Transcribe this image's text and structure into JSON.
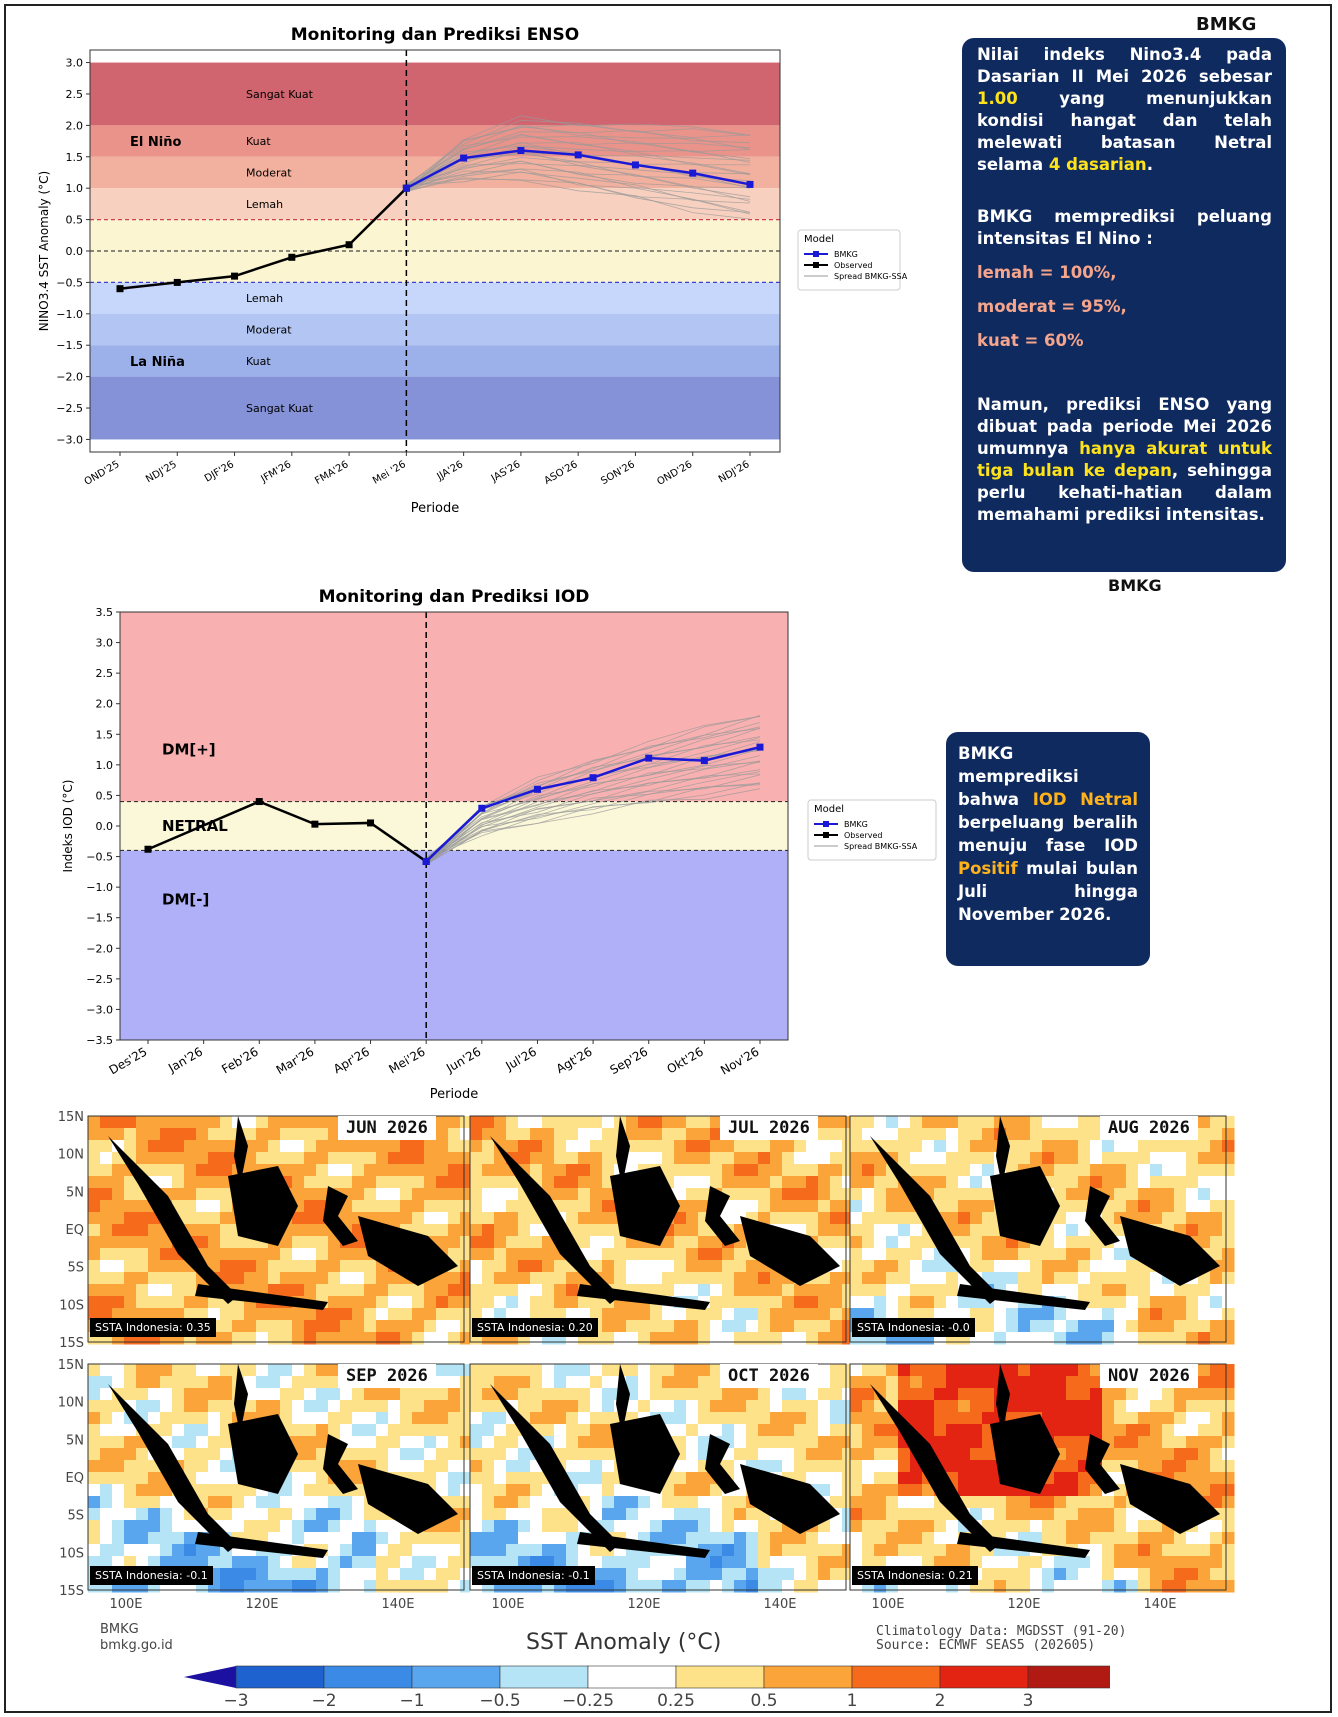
{
  "brand": {
    "top": "BMKG",
    "mid": "BMKG"
  },
  "enso_panel": {
    "p1a": "Nilai indeks Nino3.4 pada Dasarian II Mei 2026 sebesar ",
    "p1b": "1.00",
    "p1c": " yang menunjukkan kondisi hangat dan telah melewati batasan Netral selama ",
    "p1d": "4 dasarian",
    "p1e": ".",
    "p2": "BMKG memprediksi peluang intensitas El Nino :",
    "l1": "lemah = 100%,",
    "l2": "moderat = 95%,",
    "l3": "kuat = 60%",
    "p3a": "Namun, prediksi ENSO yang dibuat pada periode Mei 2026 umumnya ",
    "p3b": "hanya akurat untuk tiga bulan ke depan",
    "p3c": ", sehingga perlu kehati-hatian dalam memahami prediksi intensitas."
  },
  "iod_panel": {
    "a": "BMKG memprediksi bahwa ",
    "b": "IOD Netral",
    "c": " berpeluang beralih menuju fase IOD ",
    "d": "Positif",
    "e": " mulai bulan Juli hingga November 2026."
  },
  "chart_data": [
    {
      "type": "line",
      "title": "Monitoring dan Prediksi ENSO",
      "xlabel": "Periode",
      "ylabel": "NINO3.4 SST Anomaly (°C)",
      "ylim": [
        -3.2,
        3.2
      ],
      "yticks": [
        3.0,
        2.5,
        2.0,
        1.5,
        1.0,
        0.5,
        0.0,
        -0.5,
        -1.0,
        -1.5,
        -2.0,
        -2.5,
        -3.0
      ],
      "categories": [
        "OND'25",
        "NDJ'25",
        "DJF'26",
        "JFM'26",
        "FMA'26",
        "Mei '26",
        "JJA'26",
        "JAS'26",
        "ASO'26",
        "SON'26",
        "OND'26",
        "NDJ'26"
      ],
      "bands": [
        {
          "from": 2.0,
          "to": 3.0,
          "color": "#d0646f"
        },
        {
          "from": 1.5,
          "to": 2.0,
          "color": "#e9938a"
        },
        {
          "from": 1.0,
          "to": 1.5,
          "color": "#f2b09e"
        },
        {
          "from": 0.5,
          "to": 1.0,
          "color": "#f8d0bf"
        },
        {
          "from": -0.5,
          "to": 0.5,
          "color": "#fbf5d2"
        },
        {
          "from": -1.0,
          "to": -0.5,
          "color": "#c6d7fb"
        },
        {
          "from": -1.5,
          "to": -1.0,
          "color": "#b2c5f3"
        },
        {
          "from": -2.0,
          "to": -1.5,
          "color": "#9cb0ea"
        },
        {
          "from": -3.0,
          "to": -2.0,
          "color": "#8592d8"
        }
      ],
      "band_labels": [
        {
          "text": "Sangat Kuat",
          "y": 2.5
        },
        {
          "text": "Kuat",
          "y": 1.75
        },
        {
          "text": "Moderat",
          "y": 1.25
        },
        {
          "text": "Lemah",
          "y": 0.75
        },
        {
          "text": "Lemah",
          "y": -0.75
        },
        {
          "text": "Moderat",
          "y": -1.25
        },
        {
          "text": "Kuat",
          "y": -1.75
        },
        {
          "text": "Sangat Kuat",
          "y": -2.5
        }
      ],
      "phase_labels": [
        {
          "text": "El Niño",
          "y": 1.75
        },
        {
          "text": "La Niña",
          "y": -1.75
        }
      ],
      "series": [
        {
          "name": "Observed",
          "x": [
            0,
            1,
            2,
            3,
            4,
            5
          ],
          "values": [
            -0.6,
            -0.5,
            -0.4,
            -0.1,
            0.1,
            1.0
          ],
          "color": "#000000"
        },
        {
          "name": "BMKG",
          "x": [
            5,
            6,
            7,
            8,
            9,
            10,
            11
          ],
          "values": [
            1.0,
            1.48,
            1.6,
            1.53,
            1.37,
            1.24,
            1.06
          ],
          "color": "#1a1ad6"
        }
      ],
      "spread": {
        "name": "Spread BMKG-SSA",
        "start": 1.0,
        "x_from": 5,
        "low_end": 0.5,
        "high_end": 1.9,
        "peak_low": 1.15,
        "peak_high": 2.1
      },
      "legend": {
        "title": "Model",
        "position": "right"
      }
    },
    {
      "type": "line",
      "title": "Monitoring dan Prediksi IOD",
      "xlabel": "Periode",
      "ylabel": "Indeks IOD (°C)",
      "ylim": [
        -3.5,
        3.5
      ],
      "yticks": [
        3.5,
        3.0,
        2.5,
        2.0,
        1.5,
        1.0,
        0.5,
        0.0,
        -0.5,
        -1.0,
        -1.5,
        -2.0,
        -2.5,
        -3.0,
        -3.5
      ],
      "categories": [
        "Des'25",
        "Jan'26",
        "Feb'26",
        "Mar'26",
        "Apr'26",
        "Mei'26",
        "Jun'26",
        "Jul'26",
        "Agt'26",
        "Sep'26",
        "Okt'26",
        "Nov'26"
      ],
      "bands": [
        {
          "from": 0.4,
          "to": 3.5,
          "color": "#f9b0b0"
        },
        {
          "from": -0.4,
          "to": 0.4,
          "color": "#fbf8d9"
        },
        {
          "from": -3.5,
          "to": -0.4,
          "color": "#b0b0f8"
        }
      ],
      "phase_labels": [
        {
          "text": "DM[+]",
          "y": 1.25
        },
        {
          "text": "NETRAL",
          "y": 0.0
        },
        {
          "text": "DM[-]",
          "y": -1.2
        }
      ],
      "series": [
        {
          "name": "Observed",
          "x": [
            0,
            2,
            3,
            4,
            5
          ],
          "values": [
            -0.38,
            0.4,
            0.03,
            0.05,
            -0.58
          ],
          "color": "#000000"
        },
        {
          "name": "BMKG",
          "x": [
            5,
            6,
            7,
            8,
            9,
            10,
            11
          ],
          "values": [
            -0.58,
            0.29,
            0.6,
            0.79,
            1.11,
            1.07,
            1.29
          ],
          "color": "#1a1ad6"
        }
      ],
      "spread": {
        "name": "Spread BMKG-SSA",
        "start": -0.58,
        "x_from": 5,
        "low_end": 0.6,
        "high_end": 1.85,
        "peak_low": 0.6,
        "peak_high": 1.85
      },
      "legend": {
        "title": "Model",
        "position": "right"
      }
    },
    {
      "type": "heatmap",
      "title": "SST Anomaly (°C)",
      "maps": [
        {
          "label": "JUN 2026",
          "ssta": "SSTA Indonesia: 0.35"
        },
        {
          "label": "JUL 2026",
          "ssta": "SSTA Indonesia: 0.20"
        },
        {
          "label": "AUG 2026",
          "ssta": "SSTA Indonesia: -0.0"
        },
        {
          "label": "SEP 2026",
          "ssta": "SSTA Indonesia: -0.1"
        },
        {
          "label": "OCT 2026",
          "ssta": "SSTA Indonesia: -0.1"
        },
        {
          "label": "NOV 2026",
          "ssta": "SSTA Indonesia: 0.21"
        }
      ],
      "lat_ticks": [
        "15N",
        "10N",
        "5N",
        "EQ",
        "5S",
        "10S",
        "15S"
      ],
      "lon_ticks": [
        "100E",
        "120E",
        "140E"
      ],
      "colorbar": {
        "ticks": [
          "-3",
          "-2",
          "-1",
          "-0.5",
          "-0.25",
          "0.25",
          "0.5",
          "1",
          "2",
          "3"
        ],
        "colors": [
          "#1e62cf",
          "#3b8ae6",
          "#5aa6ee",
          "#b4e4f6",
          "#ffffff",
          "#fde28a",
          "#fba43a",
          "#f56a1b",
          "#e32413",
          "#b11a12"
        ],
        "low_color": "#1c10a0",
        "high_color": "#8c5045"
      },
      "footer": {
        "left1": "BMKG",
        "left2": "bmkg.go.id",
        "right1": "Climatology Data: MGDSST (91-20)",
        "right2": "Source: ECMWF SEAS5 (202605)"
      }
    }
  ]
}
